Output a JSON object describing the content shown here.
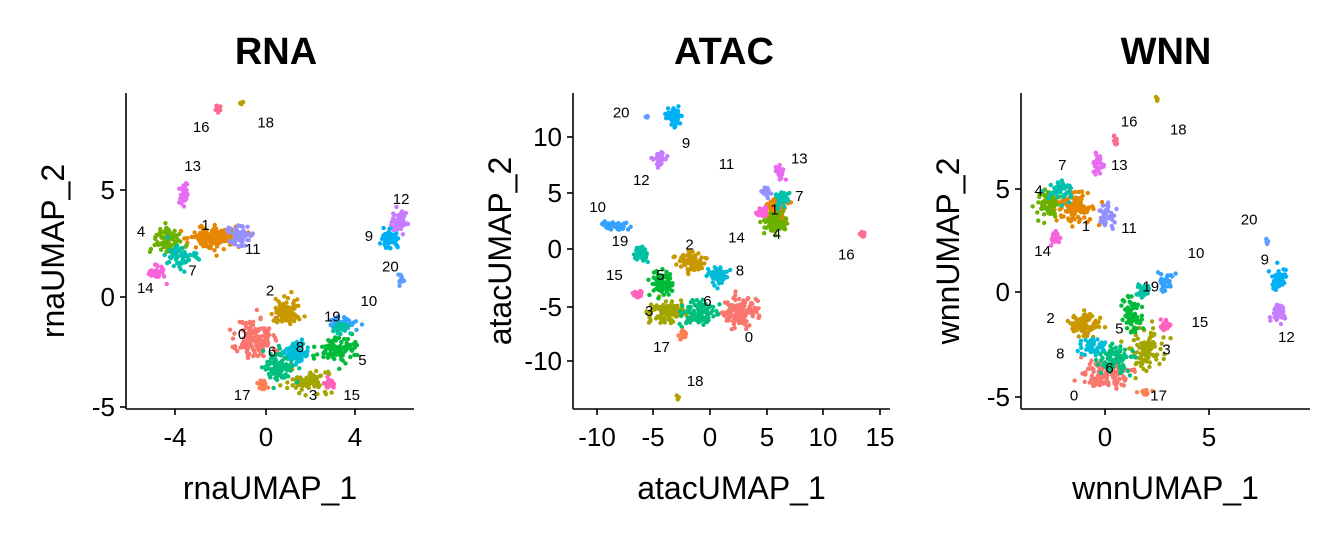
{
  "chart_data": [
    {
      "type": "scatter",
      "title": "RNA",
      "xlabel": "rnaUMAP_1",
      "ylabel": "rnaUMAP_2",
      "xlim": [
        -6.5,
        6.9
      ],
      "ylim": [
        -5.2,
        9.3
      ],
      "xticks": [
        -4,
        0,
        4
      ],
      "yticks": [
        -5,
        0,
        5
      ],
      "grid": false,
      "legend": "none",
      "clusters": [
        {
          "id": "0",
          "x": -0.5,
          "y": -2.0,
          "sx": 0.75,
          "sy": 0.9,
          "n": 140,
          "color": "#f8766d",
          "label_x": -1.1,
          "label_y": -1.8
        },
        {
          "id": "1",
          "x": -2.4,
          "y": 2.7,
          "sx": 1.1,
          "sy": 0.45,
          "n": 140,
          "color": "#e58700",
          "label_x": -2.8,
          "label_y": 3.2
        },
        {
          "id": "2",
          "x": 0.9,
          "y": -0.8,
          "sx": 0.55,
          "sy": 0.55,
          "n": 80,
          "color": "#c99800",
          "label_x": 0.2,
          "label_y": 0.2
        },
        {
          "id": "3",
          "x": 2.0,
          "y": -4.0,
          "sx": 0.9,
          "sy": 0.45,
          "n": 80,
          "color": "#a3a500",
          "label_x": 2.2,
          "label_y": -4.6
        },
        {
          "id": "4",
          "x": -4.6,
          "y": 2.5,
          "sx": 0.55,
          "sy": 0.5,
          "n": 90,
          "color": "#6bb100",
          "label_x": -5.8,
          "label_y": 2.9
        },
        {
          "id": "5",
          "x": 3.3,
          "y": -2.5,
          "sx": 0.9,
          "sy": 0.55,
          "n": 90,
          "color": "#00ba38",
          "label_x": 4.5,
          "label_y": -3.0
        },
        {
          "id": "6",
          "x": 0.6,
          "y": -3.2,
          "sx": 0.7,
          "sy": 0.7,
          "n": 110,
          "color": "#00bf7d",
          "label_x": 0.3,
          "label_y": -2.6
        },
        {
          "id": "7",
          "x": -3.9,
          "y": 1.8,
          "sx": 0.6,
          "sy": 0.5,
          "n": 60,
          "color": "#00c0af",
          "label_x": -3.4,
          "label_y": 1.1
        },
        {
          "id": "8",
          "x": 1.4,
          "y": -2.6,
          "sx": 0.5,
          "sy": 0.4,
          "n": 60,
          "color": "#00bcd8",
          "label_x": 1.6,
          "label_y": -2.4
        },
        {
          "id": "9",
          "x": 5.8,
          "y": 2.6,
          "sx": 0.35,
          "sy": 0.4,
          "n": 60,
          "color": "#00b0f6",
          "label_x": 4.8,
          "label_y": 2.7
        },
        {
          "id": "10",
          "x": 3.6,
          "y": -1.3,
          "sx": 0.6,
          "sy": 0.25,
          "n": 50,
          "color": "#35a2ff",
          "label_x": 4.8,
          "label_y": -0.3
        },
        {
          "id": "11",
          "x": -1.2,
          "y": 2.8,
          "sx": 0.5,
          "sy": 0.4,
          "n": 60,
          "color": "#9590ff",
          "label_x": -0.6,
          "label_y": 2.1
        },
        {
          "id": "12",
          "x": 6.2,
          "y": 3.4,
          "sx": 0.35,
          "sy": 0.5,
          "n": 60,
          "color": "#c77cff",
          "label_x": 6.3,
          "label_y": 4.4
        },
        {
          "id": "13",
          "x": -3.8,
          "y": 4.7,
          "sx": 0.2,
          "sy": 0.45,
          "n": 40,
          "color": "#e76bf3",
          "label_x": -3.4,
          "label_y": 5.9
        },
        {
          "id": "14",
          "x": -5.0,
          "y": 1.0,
          "sx": 0.35,
          "sy": 0.4,
          "n": 35,
          "color": "#fa62db",
          "label_x": -5.6,
          "label_y": 0.3
        },
        {
          "id": "15",
          "x": 3.0,
          "y": -4.0,
          "sx": 0.25,
          "sy": 0.3,
          "n": 30,
          "color": "#ff62bc",
          "label_x": 4.0,
          "label_y": -4.6
        },
        {
          "id": "16",
          "x": -2.2,
          "y": 8.6,
          "sx": 0.1,
          "sy": 0.15,
          "n": 12,
          "color": "#ff6c91",
          "label_x": -3.0,
          "label_y": 7.7
        },
        {
          "id": "17",
          "x": -0.1,
          "y": -4.1,
          "sx": 0.2,
          "sy": 0.2,
          "n": 20,
          "color": "#ff7f55",
          "label_x": -1.1,
          "label_y": -4.6
        },
        {
          "id": "18",
          "x": -1.1,
          "y": 8.8,
          "sx": 0.12,
          "sy": 0.08,
          "n": 8,
          "color": "#b79f00",
          "label_x": 0.0,
          "label_y": 7.9
        },
        {
          "id": "19",
          "x": 3.5,
          "y": -1.5,
          "sx": 0.3,
          "sy": 0.25,
          "n": 30,
          "color": "#00c1a3",
          "label_x": 3.1,
          "label_y": -1.0
        },
        {
          "id": "20",
          "x": 6.3,
          "y": 0.8,
          "sx": 0.15,
          "sy": 0.25,
          "n": 15,
          "color": "#619cff",
          "label_x": 5.8,
          "label_y": 1.3
        }
      ]
    },
    {
      "type": "scatter",
      "title": "ATAC",
      "xlabel": "atacUMAP_1",
      "ylabel": "atacUMAP_2",
      "xlim": [
        -12.4,
        15.9
      ],
      "ylim": [
        -14.0,
        14.0
      ],
      "xticks": [
        -10,
        -5,
        0,
        5,
        10,
        15
      ],
      "yticks": [
        -10,
        -5,
        0,
        5,
        10
      ],
      "grid": false,
      "legend": "none",
      "clusters": [
        {
          "id": "0",
          "x": 2.5,
          "y": -5.5,
          "sx": 1.4,
          "sy": 1.2,
          "n": 130,
          "color": "#f8766d",
          "label_x": 3.3,
          "label_y": -7.7
        },
        {
          "id": "1",
          "x": 5.8,
          "y": 3.6,
          "sx": 0.9,
          "sy": 0.9,
          "n": 100,
          "color": "#e58700",
          "label_x": 5.6,
          "label_y": 3.6
        },
        {
          "id": "2",
          "x": -1.8,
          "y": -1.0,
          "sx": 1.2,
          "sy": 0.8,
          "n": 90,
          "color": "#c99800",
          "label_x": -2.0,
          "label_y": 0.5
        },
        {
          "id": "3",
          "x": -4.0,
          "y": -5.4,
          "sx": 1.5,
          "sy": 1.0,
          "n": 110,
          "color": "#a3a500",
          "label_x": -5.6,
          "label_y": -5.4
        },
        {
          "id": "4",
          "x": 5.6,
          "y": 2.5,
          "sx": 0.9,
          "sy": 0.8,
          "n": 80,
          "color": "#6bb100",
          "label_x": 5.8,
          "label_y": 1.4
        },
        {
          "id": "5",
          "x": -4.4,
          "y": -2.8,
          "sx": 0.9,
          "sy": 1.0,
          "n": 80,
          "color": "#00ba38",
          "label_x": -4.6,
          "label_y": -2.2
        },
        {
          "id": "6",
          "x": -1.0,
          "y": -5.5,
          "sx": 1.5,
          "sy": 1.0,
          "n": 100,
          "color": "#00bf7d",
          "label_x": -0.4,
          "label_y": -4.5
        },
        {
          "id": "7",
          "x": 6.2,
          "y": 4.6,
          "sx": 0.5,
          "sy": 0.6,
          "n": 50,
          "color": "#00c0af",
          "label_x": 7.8,
          "label_y": 4.8
        },
        {
          "id": "8",
          "x": 0.5,
          "y": -2.2,
          "sx": 0.8,
          "sy": 0.7,
          "n": 60,
          "color": "#00bcd8",
          "label_x": 2.5,
          "label_y": -1.8
        },
        {
          "id": "9",
          "x": -3.4,
          "y": 11.8,
          "sx": 0.7,
          "sy": 0.7,
          "n": 70,
          "color": "#00b0f6",
          "label_x": -2.3,
          "label_y": 9.5
        },
        {
          "id": "10",
          "x": -8.8,
          "y": 2.2,
          "sx": 1.1,
          "sy": 0.4,
          "n": 50,
          "color": "#35a2ff",
          "label_x": -10.2,
          "label_y": 3.8
        },
        {
          "id": "11",
          "x": 4.8,
          "y": 5.2,
          "sx": 0.35,
          "sy": 0.35,
          "n": 30,
          "color": "#9590ff",
          "label_x": 1.3,
          "label_y": 7.6
        },
        {
          "id": "12",
          "x": -4.6,
          "y": 8.4,
          "sx": 0.5,
          "sy": 0.6,
          "n": 40,
          "color": "#c77cff",
          "label_x": -6.3,
          "label_y": 6.2
        },
        {
          "id": "13",
          "x": 6.0,
          "y": 7.0,
          "sx": 0.3,
          "sy": 0.5,
          "n": 30,
          "color": "#e76bf3",
          "label_x": 7.8,
          "label_y": 8.1
        },
        {
          "id": "14",
          "x": 4.5,
          "y": 3.4,
          "sx": 0.4,
          "sy": 0.4,
          "n": 30,
          "color": "#fa62db",
          "label_x": 2.2,
          "label_y": 1.1
        },
        {
          "id": "15",
          "x": -6.5,
          "y": -3.8,
          "sx": 0.35,
          "sy": 0.35,
          "n": 30,
          "color": "#ff62bc",
          "label_x": -8.7,
          "label_y": -2.2
        },
        {
          "id": "16",
          "x": 13.5,
          "y": 1.5,
          "sx": 0.3,
          "sy": 0.2,
          "n": 15,
          "color": "#ff6c91",
          "label_x": 12.0,
          "label_y": -0.4
        },
        {
          "id": "17",
          "x": -2.6,
          "y": -7.4,
          "sx": 0.4,
          "sy": 0.3,
          "n": 25,
          "color": "#ff7f55",
          "label_x": -4.5,
          "label_y": -8.6
        },
        {
          "id": "18",
          "x": -3.0,
          "y": -13.0,
          "sx": 0.1,
          "sy": 0.2,
          "n": 6,
          "color": "#b79f00",
          "label_x": -1.5,
          "label_y": -11.6
        },
        {
          "id": "19",
          "x": -6.3,
          "y": -0.2,
          "sx": 0.6,
          "sy": 0.6,
          "n": 40,
          "color": "#00c1a3",
          "label_x": -8.2,
          "label_y": 0.8
        },
        {
          "id": "20",
          "x": -5.8,
          "y": 11.9,
          "sx": 0.1,
          "sy": 0.1,
          "n": 6,
          "color": "#619cff",
          "label_x": -8.1,
          "label_y": 12.2
        }
      ]
    },
    {
      "type": "scatter",
      "title": "WNN",
      "xlabel": "wnnUMAP_1",
      "ylabel": "wnnUMAP_2",
      "xlim": [
        -4.7,
        10.0
      ],
      "ylim": [
        -5.6,
        9.5
      ],
      "xticks": [
        0,
        5
      ],
      "yticks": [
        -5,
        0,
        5
      ],
      "grid": false,
      "legend": "none",
      "clusters": [
        {
          "id": "0",
          "x": -0.3,
          "y": -4.0,
          "sx": 1.1,
          "sy": 0.55,
          "n": 120,
          "color": "#f8766d",
          "label_x": -2.0,
          "label_y": -5.0
        },
        {
          "id": "1",
          "x": -2.0,
          "y": 4.0,
          "sx": 0.9,
          "sy": 0.7,
          "n": 120,
          "color": "#e58700",
          "label_x": -1.4,
          "label_y": 3.1
        },
        {
          "id": "2",
          "x": -1.5,
          "y": -1.6,
          "sx": 0.75,
          "sy": 0.5,
          "n": 90,
          "color": "#c99800",
          "label_x": -3.2,
          "label_y": -1.3
        },
        {
          "id": "3",
          "x": 1.8,
          "y": -2.8,
          "sx": 0.7,
          "sy": 0.9,
          "n": 90,
          "color": "#a3a500",
          "label_x": 2.7,
          "label_y": -2.8
        },
        {
          "id": "4",
          "x": -3.4,
          "y": 4.2,
          "sx": 0.45,
          "sy": 0.6,
          "n": 70,
          "color": "#6bb100",
          "label_x": -3.8,
          "label_y": 4.8
        },
        {
          "id": "5",
          "x": 1.0,
          "y": -1.2,
          "sx": 0.5,
          "sy": 0.8,
          "n": 70,
          "color": "#00ba38",
          "label_x": 0.3,
          "label_y": -1.8
        },
        {
          "id": "6",
          "x": 0.0,
          "y": -3.2,
          "sx": 0.8,
          "sy": 0.6,
          "n": 90,
          "color": "#00bf7d",
          "label_x": -0.2,
          "label_y": -3.7
        },
        {
          "id": "7",
          "x": -2.7,
          "y": 4.8,
          "sx": 0.5,
          "sy": 0.4,
          "n": 50,
          "color": "#00c0af",
          "label_x": -2.6,
          "label_y": 6.0
        },
        {
          "id": "8",
          "x": -1.0,
          "y": -2.6,
          "sx": 0.6,
          "sy": 0.4,
          "n": 50,
          "color": "#00bcd8",
          "label_x": -2.7,
          "label_y": -3.0
        },
        {
          "id": "9",
          "x": 8.4,
          "y": 0.6,
          "sx": 0.35,
          "sy": 0.5,
          "n": 55,
          "color": "#00b0f6",
          "label_x": 7.7,
          "label_y": 1.5
        },
        {
          "id": "10",
          "x": 2.7,
          "y": 0.5,
          "sx": 0.35,
          "sy": 0.45,
          "n": 30,
          "color": "#35a2ff",
          "label_x": 4.2,
          "label_y": 1.8
        },
        {
          "id": "11",
          "x": -0.3,
          "y": 3.7,
          "sx": 0.35,
          "sy": 0.45,
          "n": 40,
          "color": "#9590ff",
          "label_x": 0.8,
          "label_y": 3.0
        },
        {
          "id": "12",
          "x": 8.4,
          "y": -1.0,
          "sx": 0.3,
          "sy": 0.4,
          "n": 40,
          "color": "#c77cff",
          "label_x": 8.8,
          "label_y": -2.2
        },
        {
          "id": "13",
          "x": -0.8,
          "y": 6.2,
          "sx": 0.25,
          "sy": 0.45,
          "n": 30,
          "color": "#e76bf3",
          "label_x": 0.3,
          "label_y": 6.0
        },
        {
          "id": "14",
          "x": -3.0,
          "y": 2.6,
          "sx": 0.25,
          "sy": 0.35,
          "n": 25,
          "color": "#fa62db",
          "label_x": -3.6,
          "label_y": 1.9
        },
        {
          "id": "15",
          "x": 2.6,
          "y": -1.6,
          "sx": 0.25,
          "sy": 0.2,
          "n": 20,
          "color": "#ff62bc",
          "label_x": 4.4,
          "label_y": -1.5
        },
        {
          "id": "16",
          "x": 0.1,
          "y": 7.2,
          "sx": 0.1,
          "sy": 0.2,
          "n": 10,
          "color": "#ff6c91",
          "label_x": 0.8,
          "label_y": 8.1
        },
        {
          "id": "17",
          "x": 1.6,
          "y": -4.8,
          "sx": 0.3,
          "sy": 0.2,
          "n": 15,
          "color": "#ff7f55",
          "label_x": 2.3,
          "label_y": -5.0
        },
        {
          "id": "18",
          "x": 2.2,
          "y": 9.2,
          "sx": 0.06,
          "sy": 0.15,
          "n": 6,
          "color": "#b79f00",
          "label_x": 3.3,
          "label_y": 7.7
        },
        {
          "id": "19",
          "x": 1.5,
          "y": 0.0,
          "sx": 0.3,
          "sy": 0.3,
          "n": 25,
          "color": "#00c1a3",
          "label_x": 1.9,
          "label_y": 0.2
        },
        {
          "id": "20",
          "x": 7.8,
          "y": 2.4,
          "sx": 0.07,
          "sy": 0.12,
          "n": 6,
          "color": "#619cff",
          "label_x": 6.9,
          "label_y": 3.4
        }
      ]
    }
  ]
}
